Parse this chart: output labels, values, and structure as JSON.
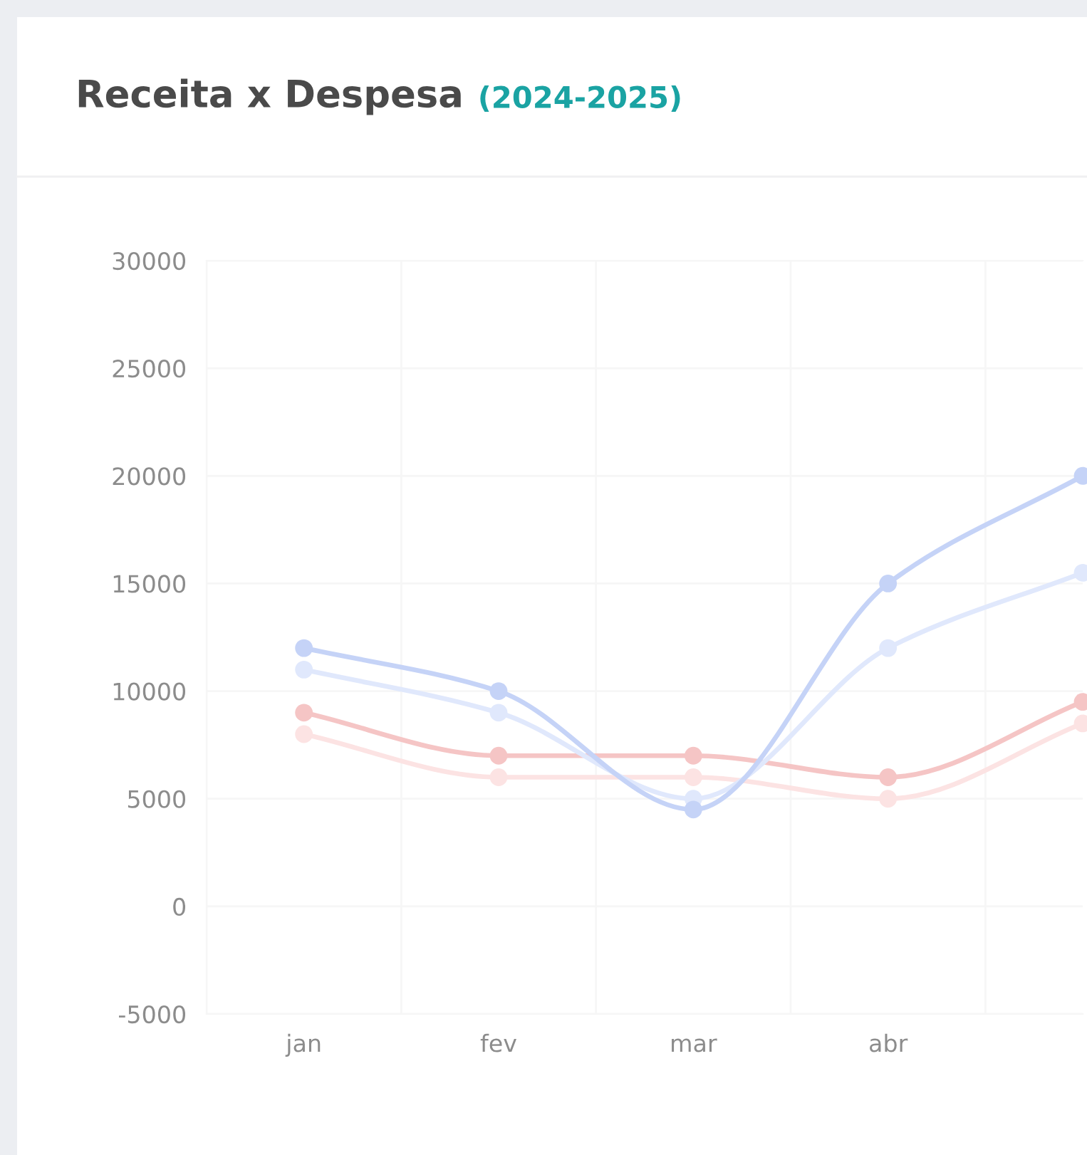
{
  "chart_data": {
    "type": "line",
    "title": "Receita x Despesa",
    "subtitle": "(2024-2025)",
    "categories": [
      "jan",
      "fev",
      "mar",
      "abr",
      null
    ],
    "series": [
      {
        "color": "#fce3e3",
        "values": [
          8000,
          6000,
          6000,
          5000,
          8500
        ]
      },
      {
        "color": "#f5c5c5",
        "values": [
          9000,
          7000,
          7000,
          6000,
          9500
        ]
      },
      {
        "color": "#e0e8fc",
        "values": [
          11000,
          9000,
          5000,
          12000,
          15500
        ]
      },
      {
        "color": "#c5d3f7",
        "values": [
          12000,
          10000,
          4500,
          15000,
          20000
        ]
      }
    ],
    "ylim": [
      -5000,
      30000
    ],
    "yticks": [
      -5000,
      0,
      5000,
      10000,
      15000,
      20000,
      25000,
      30000
    ],
    "grid": true,
    "marker": "circle",
    "line_style": "solid"
  }
}
